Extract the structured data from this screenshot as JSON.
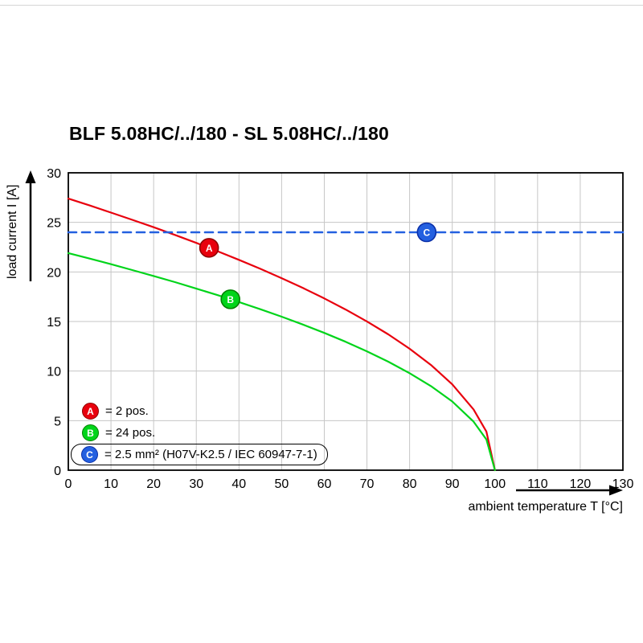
{
  "title": "BLF 5.08HC/../180 - SL 5.08HC/../180",
  "chart_data": {
    "type": "line",
    "title": "BLF 5.08HC/../180 - SL 5.08HC/../180",
    "xlabel": "ambient temperature T [°C]",
    "ylabel": "load current I [A]",
    "xlim": [
      0,
      130
    ],
    "ylim": [
      0,
      30
    ],
    "x_ticks": [
      0,
      10,
      20,
      30,
      40,
      50,
      60,
      70,
      80,
      90,
      100,
      110,
      120,
      130
    ],
    "y_ticks": [
      0,
      5,
      10,
      15,
      20,
      25,
      30
    ],
    "grid": true,
    "legend_position": "bottom-left-inside",
    "series": [
      {
        "name": "A",
        "label": "= 2 pos.",
        "color": "#e8000d",
        "edge": "#8f0000",
        "style": "solid",
        "x": [
          0,
          5,
          10,
          15,
          20,
          25,
          30,
          35,
          40,
          45,
          50,
          55,
          60,
          65,
          70,
          75,
          80,
          85,
          90,
          95,
          98,
          100
        ],
        "y": [
          27.4,
          26.71,
          25.99,
          25.26,
          24.51,
          23.73,
          22.93,
          22.09,
          21.22,
          20.32,
          19.37,
          18.38,
          17.33,
          16.21,
          15.01,
          13.7,
          12.25,
          10.61,
          8.66,
          6.13,
          3.88,
          0
        ],
        "marker": {
          "letter": "A",
          "x": 33,
          "y": 22.43
        }
      },
      {
        "name": "B",
        "label": "= 24 pos.",
        "color": "#00d41a",
        "edge": "#008000",
        "style": "solid",
        "x": [
          0,
          5,
          10,
          15,
          20,
          25,
          30,
          35,
          40,
          45,
          50,
          55,
          60,
          65,
          70,
          75,
          80,
          85,
          90,
          95,
          98,
          100
        ],
        "y": [
          21.9,
          21.35,
          20.78,
          20.19,
          19.59,
          18.97,
          18.32,
          17.66,
          16.96,
          16.24,
          15.49,
          14.69,
          13.85,
          12.96,
          11.99,
          10.95,
          9.79,
          8.48,
          6.93,
          4.9,
          3.1,
          0
        ],
        "marker": {
          "letter": "B",
          "x": 38,
          "y": 17.24
        }
      },
      {
        "name": "C",
        "label": "= 2.5 mm² (H07V-K2.5 / IEC 60947-7-1)",
        "color": "#2460e0",
        "edge": "#0a2fa8",
        "style": "dashed",
        "x": [
          0,
          130
        ],
        "y": [
          24,
          24
        ],
        "marker": {
          "letter": "C",
          "x": 84,
          "y": 24
        }
      }
    ]
  }
}
